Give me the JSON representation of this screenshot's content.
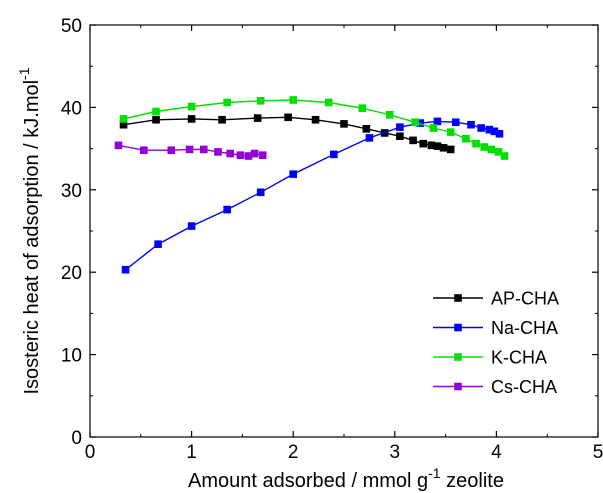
{
  "chart_data": {
    "type": "line",
    "xlabel": {
      "main": "Amount adsorbed / mmol g",
      "sup": "-1",
      "tail": " zeolite"
    },
    "ylabel": {
      "main": "Isosteric heat of adsorption / kJ.mol",
      "sup": "-1"
    },
    "xlim": [
      0,
      5
    ],
    "ylim": [
      0,
      50
    ],
    "xticks": [
      "0",
      "1",
      "2",
      "3",
      "4",
      "5"
    ],
    "yticks": [
      "0",
      "10",
      "20",
      "30",
      "40",
      "50"
    ],
    "legend_position": "bottom-right",
    "grid": false,
    "series": [
      {
        "name": "AP-CHA",
        "color": "#000000",
        "x": [
          0.33,
          0.65,
          1.0,
          1.3,
          1.65,
          1.95,
          2.22,
          2.5,
          2.72,
          2.9,
          3.05,
          3.18,
          3.28,
          3.36,
          3.42,
          3.48,
          3.55
        ],
        "y": [
          37.9,
          38.5,
          38.6,
          38.5,
          38.7,
          38.8,
          38.5,
          38.0,
          37.4,
          36.9,
          36.5,
          36.0,
          35.6,
          35.4,
          35.3,
          35.1,
          34.9
        ]
      },
      {
        "name": "Na-CHA",
        "color": "#0000ff",
        "x": [
          0.35,
          0.67,
          1.0,
          1.35,
          1.68,
          2.0,
          2.4,
          2.75,
          3.05,
          3.25,
          3.42,
          3.6,
          3.75,
          3.85,
          3.93,
          3.98,
          4.03
        ],
        "y": [
          20.3,
          23.4,
          25.6,
          27.6,
          29.7,
          31.9,
          34.3,
          36.3,
          37.6,
          38.1,
          38.3,
          38.2,
          37.9,
          37.5,
          37.3,
          37.1,
          36.8
        ]
      },
      {
        "name": "K-CHA",
        "color": "#00e000",
        "x": [
          0.33,
          0.65,
          1.0,
          1.35,
          1.68,
          2.0,
          2.35,
          2.68,
          2.95,
          3.2,
          3.38,
          3.55,
          3.7,
          3.8,
          3.88,
          3.95,
          4.02,
          4.08
        ],
        "y": [
          38.6,
          39.5,
          40.1,
          40.6,
          40.8,
          40.9,
          40.6,
          39.9,
          39.1,
          38.2,
          37.5,
          37.0,
          36.2,
          35.6,
          35.2,
          34.9,
          34.6,
          34.1
        ]
      },
      {
        "name": "Cs-CHA",
        "color": "#9400d3",
        "x": [
          0.28,
          0.53,
          0.8,
          0.98,
          1.12,
          1.26,
          1.38,
          1.48,
          1.56,
          1.62,
          1.7
        ],
        "y": [
          35.4,
          34.8,
          34.8,
          34.9,
          34.9,
          34.6,
          34.4,
          34.2,
          34.1,
          34.4,
          34.2
        ]
      }
    ]
  }
}
